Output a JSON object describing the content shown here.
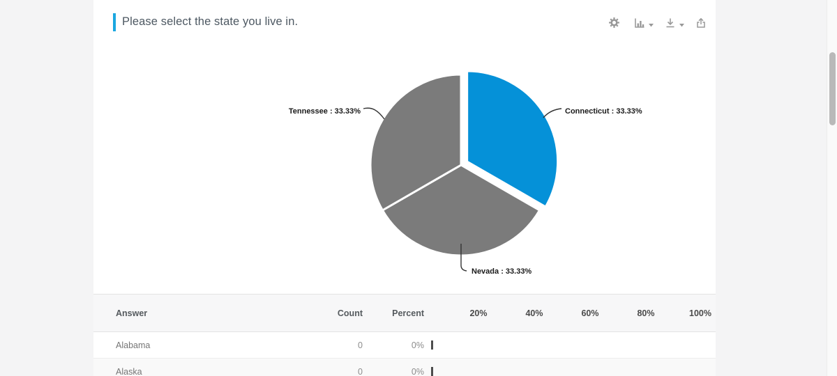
{
  "card": {
    "title": "Please select the state you live in.",
    "accent_color": "#1ba7e0"
  },
  "toolbar": {
    "icons": [
      "settings",
      "chart-type",
      "download",
      "share"
    ]
  },
  "chart_data": {
    "type": "pie",
    "title": "Please select the state you live in.",
    "start_angle_deg": -90,
    "legend": "none",
    "label_style": "outside-callout",
    "slices": [
      {
        "name": "Connecticut",
        "value": 33.33,
        "label": "Connecticut : 33.33%",
        "color": "#0591d8",
        "exploded": true
      },
      {
        "name": "Nevada",
        "value": 33.33,
        "label": "Nevada : 33.33%",
        "color": "#7b7b7b",
        "exploded": false
      },
      {
        "name": "Tennessee",
        "value": 33.33,
        "label": "Tennessee : 33.33%",
        "color": "#7b7b7b",
        "exploded": false
      }
    ]
  },
  "table": {
    "headers": {
      "answer": "Answer",
      "count": "Count",
      "percent": "Percent"
    },
    "scale_ticks": [
      "20%",
      "40%",
      "60%",
      "80%",
      "100%"
    ],
    "rows": [
      {
        "answer": "Alabama",
        "count": "0",
        "percent": "0%",
        "bar_value": 0
      },
      {
        "answer": "Alaska",
        "count": "0",
        "percent": "0%",
        "bar_value": 0
      }
    ]
  }
}
